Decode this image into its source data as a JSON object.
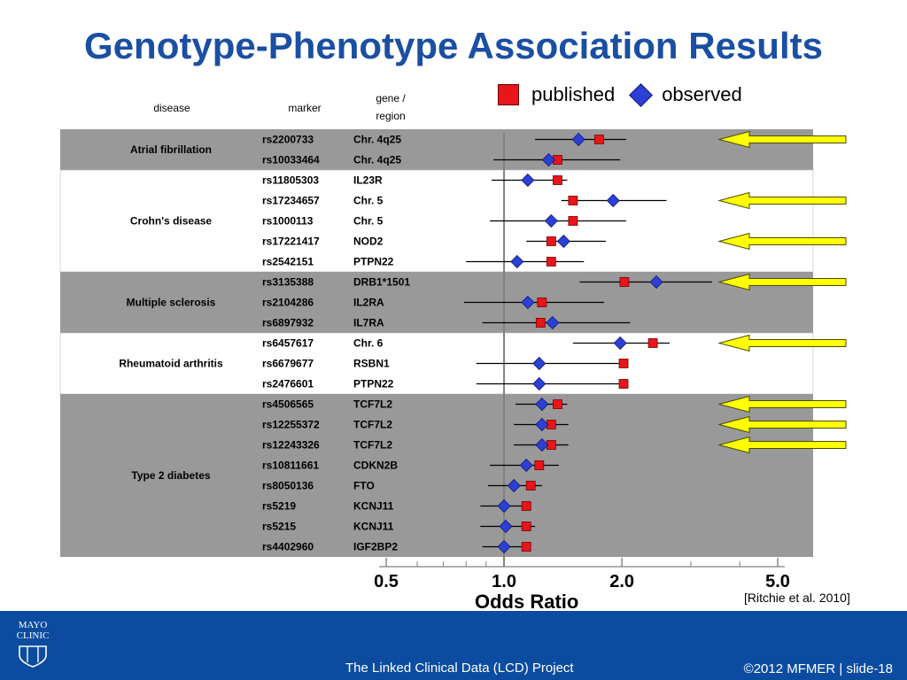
{
  "slide": {
    "title": "Genotype-Phenotype Association Results",
    "citation": "[Ritchie et al. 2010]",
    "footer_project": "The Linked Clinical Data (LCD) Project",
    "footer_slide": "©2012 MFMER  |  slide-18",
    "logo_line1": "MAYO",
    "logo_line2": "CLINIC"
  },
  "legend": {
    "published": "published",
    "observed": "observed"
  },
  "headers": {
    "disease": "disease",
    "marker": "marker",
    "gene_line1": "gene /",
    "gene_line2": "region"
  },
  "colors": {
    "published": "#e8151b",
    "observed": "#2c3fd6",
    "band": "#999999",
    "arrow": "#ffff00",
    "title": "#1a4fa3",
    "footer": "#0b4ca0"
  },
  "chart_data": {
    "type": "scatter",
    "xlabel": "Odds Ratio",
    "x_scale": "log",
    "xlim": [
      0.5,
      5.0
    ],
    "x_ticks": [
      0.5,
      1.0,
      2.0,
      5.0
    ],
    "x_tick_labels": [
      "0.5",
      "1.0",
      "2.0",
      "5.0"
    ],
    "reference_line": 1.0,
    "series": [
      {
        "name": "published"
      },
      {
        "name": "observed"
      }
    ],
    "groups": [
      {
        "disease": "Atrial fibrillation",
        "shaded": true,
        "rows": [
          {
            "marker": "rs2200733",
            "gene": "Chr. 4q25",
            "published": 1.75,
            "observed": 1.55,
            "ci": [
              1.2,
              2.05
            ],
            "arrow": true
          },
          {
            "marker": "rs10033464",
            "gene": "Chr. 4q25",
            "published": 1.37,
            "observed": 1.3,
            "ci": [
              0.94,
              1.98
            ],
            "arrow": false
          }
        ]
      },
      {
        "disease": "Crohn's disease",
        "shaded": false,
        "rows": [
          {
            "marker": "rs11805303",
            "gene": "IL23R",
            "published": 1.37,
            "observed": 1.15,
            "ci": [
              0.93,
              1.45
            ],
            "arrow": false
          },
          {
            "marker": "rs17234657",
            "gene": "Chr. 5",
            "published": 1.5,
            "observed": 1.9,
            "ci": [
              1.4,
              2.6
            ],
            "arrow": true
          },
          {
            "marker": "rs1000113",
            "gene": "Chr. 5",
            "published": 1.5,
            "observed": 1.32,
            "ci": [
              0.92,
              2.05
            ],
            "arrow": false
          },
          {
            "marker": "rs17221417",
            "gene": "NOD2",
            "published": 1.32,
            "observed": 1.42,
            "ci": [
              1.14,
              1.82
            ],
            "arrow": true
          },
          {
            "marker": "rs2542151",
            "gene": "PTPN22",
            "published": 1.32,
            "observed": 1.08,
            "ci": [
              0.8,
              1.6
            ],
            "arrow": false
          }
        ]
      },
      {
        "disease": "Multiple sclerosis",
        "shaded": true,
        "rows": [
          {
            "marker": "rs3135388",
            "gene": "DRB1*1501",
            "published": 2.03,
            "observed": 2.45,
            "ci": [
              1.56,
              3.4
            ],
            "arrow": true
          },
          {
            "marker": "rs2104286",
            "gene": "IL2RA",
            "published": 1.25,
            "observed": 1.15,
            "ci": [
              0.79,
              1.8
            ],
            "arrow": false
          },
          {
            "marker": "rs6897932",
            "gene": "IL7RA",
            "published": 1.24,
            "observed": 1.33,
            "ci": [
              0.88,
              2.1
            ],
            "arrow": false
          }
        ]
      },
      {
        "disease": "Rheumatoid arthritis",
        "shaded": false,
        "rows": [
          {
            "marker": "rs6457617",
            "gene": "Chr. 6",
            "published": 2.4,
            "observed": 1.98,
            "ci": [
              1.5,
              2.65
            ],
            "arrow": true
          },
          {
            "marker": "rs6679677",
            "gene": "RSBN1",
            "published": 2.02,
            "observed": 1.23,
            "ci": [
              0.85,
              1.98
            ],
            "arrow": false
          },
          {
            "marker": "rs2476601",
            "gene": "PTPN22",
            "published": 2.02,
            "observed": 1.23,
            "ci": [
              0.85,
              1.98
            ],
            "arrow": false
          }
        ]
      },
      {
        "disease": "Type 2 diabetes",
        "shaded": true,
        "rows": [
          {
            "marker": "rs4506565",
            "gene": "TCF7L2",
            "published": 1.37,
            "observed": 1.25,
            "ci": [
              1.07,
              1.45
            ],
            "arrow": true
          },
          {
            "marker": "rs12255372",
            "gene": "TCF7L2",
            "published": 1.32,
            "observed": 1.25,
            "ci": [
              1.06,
              1.46
            ],
            "arrow": true
          },
          {
            "marker": "rs12243326",
            "gene": "TCF7L2",
            "published": 1.32,
            "observed": 1.25,
            "ci": [
              1.06,
              1.46
            ],
            "arrow": true
          },
          {
            "marker": "rs10811661",
            "gene": "CDKN2B",
            "published": 1.23,
            "observed": 1.14,
            "ci": [
              0.92,
              1.38
            ],
            "arrow": false
          },
          {
            "marker": "rs8050136",
            "gene": "FTO",
            "published": 1.17,
            "observed": 1.06,
            "ci": [
              0.91,
              1.25
            ],
            "arrow": false
          },
          {
            "marker": "rs5219",
            "gene": "KCNJ11",
            "published": 1.14,
            "observed": 1.0,
            "ci": [
              0.87,
              1.14
            ],
            "arrow": false
          },
          {
            "marker": "rs5215",
            "gene": "KCNJ11",
            "published": 1.14,
            "observed": 1.01,
            "ci": [
              0.87,
              1.2
            ],
            "arrow": false
          },
          {
            "marker": "rs4402960",
            "gene": "IGF2BP2",
            "published": 1.14,
            "observed": 1.0,
            "ci": [
              0.88,
              1.12
            ],
            "arrow": false
          }
        ]
      }
    ]
  }
}
